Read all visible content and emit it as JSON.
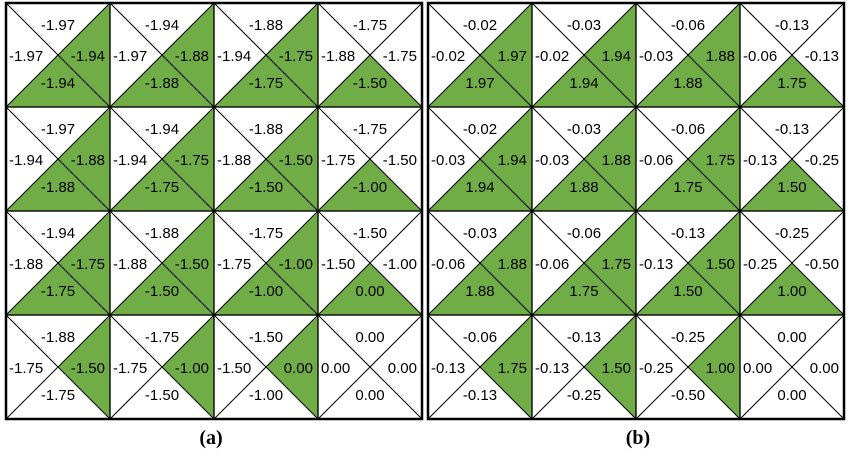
{
  "colors": {
    "highlight": "#70AD47",
    "line": "#000000",
    "background": "#FFFFFF"
  },
  "panels": [
    {
      "caption": "(a)",
      "cells": [
        [
          {
            "top": "-1.97",
            "left": "-1.97",
            "right": "-1.94",
            "bottom": "-1.94",
            "shaded": [
              "right",
              "bottom"
            ]
          },
          {
            "top": "-1.94",
            "left": "-1.97",
            "right": "-1.88",
            "bottom": "-1.88",
            "shaded": [
              "right",
              "bottom"
            ]
          },
          {
            "top": "-1.88",
            "left": "-1.94",
            "right": "-1.75",
            "bottom": "-1.75",
            "shaded": [
              "right",
              "bottom"
            ]
          },
          {
            "top": "-1.75",
            "left": "-1.88",
            "right": "-1.75",
            "bottom": "-1.50",
            "shaded": [
              "bottom"
            ]
          }
        ],
        [
          {
            "top": "-1.97",
            "left": "-1.94",
            "right": "-1.88",
            "bottom": "-1.88",
            "shaded": [
              "right",
              "bottom"
            ]
          },
          {
            "top": "-1.94",
            "left": "-1.94",
            "right": "-1.75",
            "bottom": "-1.75",
            "shaded": [
              "right",
              "bottom"
            ]
          },
          {
            "top": "-1.88",
            "left": "-1.88",
            "right": "-1.50",
            "bottom": "-1.50",
            "shaded": [
              "right",
              "bottom"
            ]
          },
          {
            "top": "-1.75",
            "left": "-1.75",
            "right": "-1.50",
            "bottom": "-1.00",
            "shaded": [
              "bottom"
            ]
          }
        ],
        [
          {
            "top": "-1.94",
            "left": "-1.88",
            "right": "-1.75",
            "bottom": "-1.75",
            "shaded": [
              "right",
              "bottom"
            ]
          },
          {
            "top": "-1.88",
            "left": "-1.88",
            "right": "-1.50",
            "bottom": "-1.50",
            "shaded": [
              "right",
              "bottom"
            ]
          },
          {
            "top": "-1.75",
            "left": "-1.75",
            "right": "-1.00",
            "bottom": "-1.00",
            "shaded": [
              "right",
              "bottom"
            ]
          },
          {
            "top": "-1.50",
            "left": "-1.50",
            "right": "-1.00",
            "bottom": "0.00",
            "shaded": [
              "bottom"
            ]
          }
        ],
        [
          {
            "top": "-1.88",
            "left": "-1.75",
            "right": "-1.50",
            "bottom": "-1.75",
            "shaded": [
              "right"
            ]
          },
          {
            "top": "-1.75",
            "left": "-1.75",
            "right": "-1.00",
            "bottom": "-1.50",
            "shaded": [
              "right"
            ]
          },
          {
            "top": "-1.50",
            "left": "-1.50",
            "right": "0.00",
            "bottom": "-1.00",
            "shaded": [
              "right"
            ]
          },
          {
            "top": "0.00",
            "left": "0.00",
            "right": "0.00",
            "bottom": "0.00",
            "shaded": []
          }
        ]
      ]
    },
    {
      "caption": "(b)",
      "cells": [
        [
          {
            "top": "-0.02",
            "left": "-0.02",
            "right": "1.97",
            "bottom": "1.97",
            "shaded": [
              "right",
              "bottom"
            ]
          },
          {
            "top": "-0.03",
            "left": "-0.02",
            "right": "1.94",
            "bottom": "1.94",
            "shaded": [
              "right",
              "bottom"
            ]
          },
          {
            "top": "-0.06",
            "left": "-0.03",
            "right": "1.88",
            "bottom": "1.88",
            "shaded": [
              "right",
              "bottom"
            ]
          },
          {
            "top": "-0.13",
            "left": "-0.06",
            "right": "-0.13",
            "bottom": "1.75",
            "shaded": [
              "bottom"
            ]
          }
        ],
        [
          {
            "top": "-0.02",
            "left": "-0.03",
            "right": "1.94",
            "bottom": "1.94",
            "shaded": [
              "right",
              "bottom"
            ]
          },
          {
            "top": "-0.03",
            "left": "-0.03",
            "right": "1.88",
            "bottom": "1.88",
            "shaded": [
              "right",
              "bottom"
            ]
          },
          {
            "top": "-0.06",
            "left": "-0.06",
            "right": "1.75",
            "bottom": "1.75",
            "shaded": [
              "right",
              "bottom"
            ]
          },
          {
            "top": "-0.13",
            "left": "-0.13",
            "right": "-0.25",
            "bottom": "1.50",
            "shaded": [
              "bottom"
            ]
          }
        ],
        [
          {
            "top": "-0.03",
            "left": "-0.06",
            "right": "1.88",
            "bottom": "1.88",
            "shaded": [
              "right",
              "bottom"
            ]
          },
          {
            "top": "-0.06",
            "left": "-0.06",
            "right": "1.75",
            "bottom": "1.75",
            "shaded": [
              "right",
              "bottom"
            ]
          },
          {
            "top": "-0.13",
            "left": "-0.13",
            "right": "1.50",
            "bottom": "1.50",
            "shaded": [
              "right",
              "bottom"
            ]
          },
          {
            "top": "-0.25",
            "left": "-0.25",
            "right": "-0.50",
            "bottom": "1.00",
            "shaded": [
              "bottom"
            ]
          }
        ],
        [
          {
            "top": "-0.06",
            "left": "-0.13",
            "right": "1.75",
            "bottom": "-0.13",
            "shaded": [
              "right"
            ]
          },
          {
            "top": "-0.13",
            "left": "-0.13",
            "right": "1.50",
            "bottom": "-0.25",
            "shaded": [
              "right"
            ]
          },
          {
            "top": "-0.25",
            "left": "-0.25",
            "right": "1.00",
            "bottom": "-0.50",
            "shaded": [
              "right"
            ]
          },
          {
            "top": "0.00",
            "left": "0.00",
            "right": "0.00",
            "bottom": "0.00",
            "shaded": []
          }
        ]
      ]
    }
  ]
}
